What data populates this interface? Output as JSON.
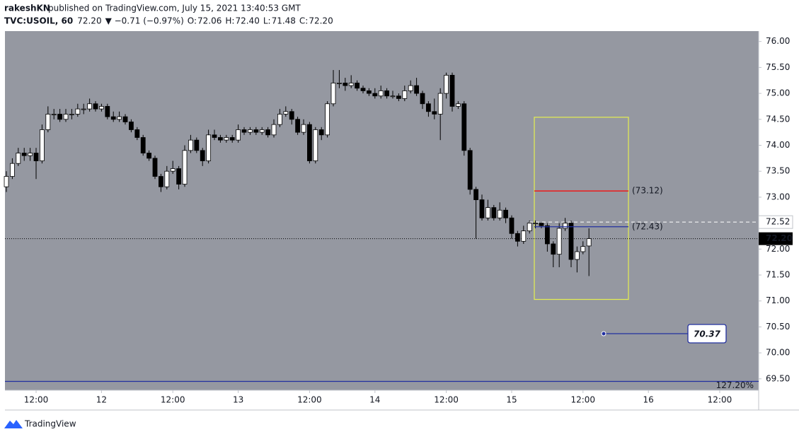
{
  "header": {
    "author": "rakeshKN",
    "published": "published on TradingView.com, July 15, 2021 13:40:53 GMT",
    "symbol": "TVC:USOIL, 60",
    "price": "72.20",
    "change": "▼ −0.71 (−0.97%)",
    "ohlc": [
      {
        "label": "O:",
        "value": "72.06"
      },
      {
        "label": "H:",
        "value": "72.40"
      },
      {
        "label": "L:",
        "value": "71.48"
      },
      {
        "label": "C:",
        "value": "72.20"
      }
    ]
  },
  "chart_data": {
    "type": "candlestick",
    "background": "#9598a1",
    "up_color": "#ffffff",
    "down_color": "#000000",
    "ylim": [
      69.28,
      76.2
    ],
    "yticks": [
      {
        "value": 69.5,
        "label": "69.50"
      },
      {
        "value": 70,
        "label": "70.00"
      },
      {
        "value": 70.5,
        "label": "70.50"
      },
      {
        "value": 71,
        "label": "71.00"
      },
      {
        "value": 71.5,
        "label": "71.50"
      },
      {
        "value": 72,
        "label": "72.00"
      },
      {
        "value": 72.5,
        "label": "72.50"
      },
      {
        "value": 73,
        "label": "73.00"
      },
      {
        "value": 73.5,
        "label": "73.50"
      },
      {
        "value": 74,
        "label": "74.00"
      },
      {
        "value": 74.5,
        "label": "74.50"
      },
      {
        "value": 75,
        "label": "75.00"
      },
      {
        "value": 75.5,
        "label": "75.50"
      },
      {
        "value": 76,
        "label": "76.00"
      }
    ],
    "xlim": [
      -0.24,
      126.55
    ],
    "xticks": [
      {
        "value": 5,
        "label": "12:00"
      },
      {
        "value": 16,
        "label": "12"
      },
      {
        "value": 28,
        "label": "12:00"
      },
      {
        "value": 39,
        "label": "13"
      },
      {
        "value": 51,
        "label": "12:00"
      },
      {
        "value": 62,
        "label": "14"
      },
      {
        "value": 74,
        "label": "12:00"
      },
      {
        "value": 85,
        "label": "15"
      },
      {
        "value": 97,
        "label": "12:00"
      },
      {
        "value": 108,
        "label": "16"
      },
      {
        "value": 120,
        "label": "12:00"
      }
    ],
    "open": [
      73.2,
      73.4,
      73.65,
      73.85,
      73.8,
      73.85,
      73.7,
      74.3,
      74.6,
      74.6,
      74.5,
      74.6,
      74.6,
      74.7,
      74.7,
      74.8,
      74.7,
      74.75,
      74.55,
      74.5,
      74.55,
      74.45,
      74.3,
      74.15,
      73.85,
      73.75,
      73.4,
      73.2,
      73.5,
      73.55,
      73.25,
      73.9,
      74.1,
      73.9,
      73.7,
      74.2,
      74.15,
      74.1,
      74.15,
      74.1,
      74.3,
      74.25,
      74.3,
      74.25,
      74.3,
      74.2,
      74.4,
      74.6,
      74.65,
      74.5,
      74.25,
      74.4,
      73.7,
      74.3,
      74.2,
      74.8,
      75.2,
      75.2,
      75.15,
      75.2,
      75.1,
      75.05,
      75.0,
      74.95,
      75.05,
      74.95,
      74.95,
      74.9,
      75.05,
      75.15,
      75.0,
      74.8,
      74.65,
      74.6,
      75.0,
      75.35,
      74.75,
      74.8,
      73.9,
      73.15,
      72.95,
      72.6,
      72.8,
      72.6,
      72.75,
      72.6,
      72.3,
      72.15,
      72.35,
      72.5,
      72.5,
      72.45,
      72.1,
      71.9,
      72.4,
      72.5,
      71.8,
      71.95,
      72.06
    ],
    "high": [
      73.5,
      73.75,
      73.95,
      73.95,
      73.95,
      73.95,
      74.4,
      74.75,
      74.7,
      74.7,
      74.7,
      74.7,
      74.8,
      74.8,
      74.9,
      74.85,
      74.8,
      74.8,
      74.65,
      74.65,
      74.6,
      74.5,
      74.35,
      74.2,
      73.9,
      73.8,
      73.45,
      73.6,
      73.7,
      73.6,
      74.0,
      74.2,
      74.15,
      73.95,
      74.3,
      74.3,
      74.2,
      74.2,
      74.2,
      74.4,
      74.35,
      74.35,
      74.35,
      74.35,
      74.35,
      74.5,
      74.7,
      74.75,
      74.7,
      74.55,
      74.5,
      74.45,
      74.35,
      74.35,
      74.85,
      75.45,
      75.45,
      75.3,
      75.35,
      75.25,
      75.15,
      75.1,
      75.1,
      75.15,
      75.1,
      75.05,
      75.0,
      75.15,
      75.25,
      75.3,
      75.05,
      74.85,
      74.9,
      75.1,
      75.4,
      75.4,
      74.85,
      74.85,
      73.95,
      73.2,
      73.05,
      72.95,
      72.85,
      72.9,
      72.8,
      72.65,
      72.35,
      72.45,
      72.55,
      72.55,
      72.5,
      72.5,
      72.15,
      72.5,
      72.6,
      72.55,
      72.05,
      72.15,
      72.4
    ],
    "low": [
      73.1,
      73.35,
      73.6,
      73.7,
      73.7,
      73.35,
      73.65,
      74.25,
      74.5,
      74.45,
      74.45,
      74.5,
      74.55,
      74.6,
      74.65,
      74.65,
      74.65,
      74.5,
      74.45,
      74.45,
      74.4,
      74.25,
      74.1,
      73.8,
      73.7,
      73.35,
      73.1,
      73.15,
      73.45,
      73.15,
      73.2,
      73.85,
      73.85,
      73.6,
      73.65,
      74.1,
      74.05,
      74.05,
      74.05,
      74.05,
      74.2,
      74.2,
      74.2,
      74.2,
      74.15,
      74.15,
      74.35,
      74.55,
      74.4,
      74.2,
      74.2,
      73.65,
      73.65,
      74.1,
      74.15,
      74.75,
      75.1,
      75.05,
      75.1,
      75.05,
      75.0,
      74.95,
      74.9,
      74.9,
      74.9,
      74.9,
      74.85,
      74.85,
      75.0,
      74.95,
      74.7,
      74.55,
      74.5,
      74.1,
      74.9,
      74.65,
      74.7,
      73.8,
      73.05,
      72.2,
      72.55,
      72.55,
      72.55,
      72.55,
      72.5,
      72.2,
      72.05,
      72.1,
      72.3,
      72.4,
      72.4,
      71.95,
      71.65,
      71.65,
      72.35,
      71.65,
      71.55,
      71.9,
      71.48
    ],
    "close": [
      73.4,
      73.65,
      73.85,
      73.8,
      73.85,
      73.7,
      74.3,
      74.6,
      74.6,
      74.5,
      74.6,
      74.6,
      74.7,
      74.7,
      74.8,
      74.7,
      74.75,
      74.55,
      74.5,
      74.55,
      74.45,
      74.3,
      74.15,
      73.85,
      73.75,
      73.4,
      73.2,
      73.5,
      73.55,
      73.25,
      73.9,
      74.1,
      73.9,
      73.7,
      74.2,
      74.15,
      74.1,
      74.15,
      74.1,
      74.3,
      74.25,
      74.3,
      74.25,
      74.3,
      74.2,
      74.4,
      74.6,
      74.65,
      74.5,
      74.25,
      74.4,
      73.7,
      74.3,
      74.2,
      74.8,
      75.2,
      75.2,
      75.15,
      75.2,
      75.1,
      75.05,
      75.0,
      74.95,
      75.05,
      74.95,
      74.95,
      74.9,
      75.05,
      75.15,
      75.0,
      74.8,
      74.65,
      74.6,
      75.0,
      75.35,
      74.75,
      74.8,
      73.9,
      73.15,
      72.95,
      72.6,
      72.8,
      72.6,
      72.75,
      72.6,
      72.3,
      72.15,
      72.35,
      72.5,
      72.5,
      72.45,
      72.1,
      71.9,
      72.4,
      72.5,
      71.8,
      71.95,
      72.05,
      72.2
    ],
    "annotations": {
      "box": {
        "top": 74.54,
        "bottom": 71.03,
        "color": "#e5f050"
      },
      "levels": [
        {
          "value": 73.12,
          "label": "(73.12)",
          "color": "#ff0000"
        },
        {
          "value": 72.43,
          "label": "(72.43)",
          "color": "#2230a0"
        }
      ],
      "dashed_level": {
        "value": 72.52,
        "label": "72.52"
      },
      "last_price": {
        "value": 72.2,
        "label": "72.20"
      },
      "price_note": {
        "value": 70.37,
        "label": "70.37",
        "color": "#2230a0"
      },
      "fib_level": {
        "value": 69.45,
        "label": "127.20%",
        "color": "#2230a0"
      }
    }
  },
  "footer": {
    "brand": "TradingView"
  }
}
